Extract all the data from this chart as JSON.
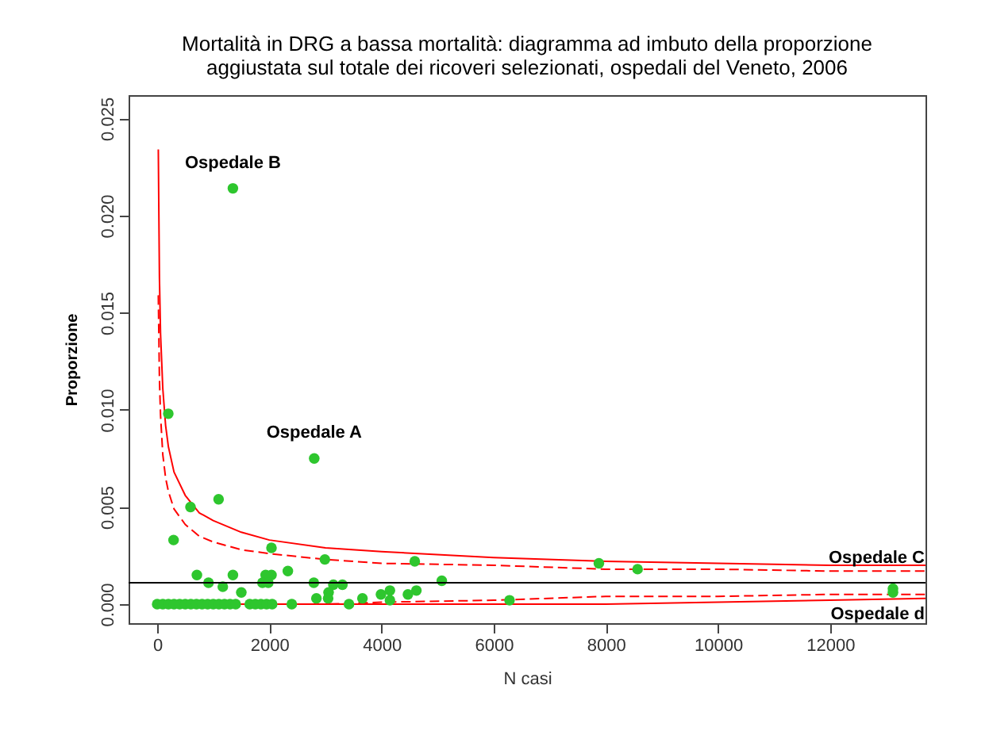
{
  "chart_data": {
    "type": "scatter",
    "title": [
      "Mortalità in DRG a bassa mortalità: diagramma ad imbuto della proporzione",
      "aggiustata sul totale dei ricoveri selezionati, ospedali del Veneto, 2006"
    ],
    "xlabel": "N casi",
    "ylabel": "Proporzione",
    "xlim": [
      -510,
      13700
    ],
    "ylim": [
      -0.00098,
      0.0262
    ],
    "xticks": [
      0,
      2000,
      4000,
      6000,
      8000,
      10000,
      12000
    ],
    "yticks": [
      {
        "value": 0,
        "label": "0.000"
      },
      {
        "value": 0.005,
        "label": "0.005"
      },
      {
        "value": 0.01,
        "label": "0.010"
      },
      {
        "value": 0.015,
        "label": "0.015"
      },
      {
        "value": 0.02,
        "label": "0.020"
      },
      {
        "value": 0.025,
        "label": "0.025"
      }
    ],
    "grid": false,
    "series": [
      {
        "type": "line",
        "color": "#ff0000",
        "line_style": "solid",
        "x": [
          20,
          40,
          60,
          100,
          150,
          200,
          300,
          500,
          750,
          1000,
          1500,
          2000,
          3000,
          4000,
          6000,
          8000,
          10000,
          12000,
          13700
        ],
        "values": [
          0.0234,
          0.0168,
          0.0139,
          0.0111,
          0.0092,
          0.0081,
          0.0068,
          0.0056,
          0.0047,
          0.0043,
          0.0037,
          0.0033,
          0.0029,
          0.0027,
          0.0024,
          0.0022,
          0.0021,
          0.002,
          0.002
        ]
      },
      {
        "type": "line",
        "color": "#ff0000",
        "line_style": "dashed",
        "x": [
          20,
          40,
          60,
          100,
          150,
          200,
          300,
          500,
          750,
          1000,
          1500,
          2000,
          3000,
          4000,
          6000,
          8000,
          10000,
          12000,
          13700
        ],
        "values": [
          0.0159,
          0.0116,
          0.0097,
          0.0077,
          0.0065,
          0.0058,
          0.0049,
          0.0041,
          0.0035,
          0.0032,
          0.0028,
          0.0026,
          0.0023,
          0.0021,
          0.002,
          0.0018,
          0.0018,
          0.0017,
          0.0017
        ]
      },
      {
        "type": "line",
        "color": "#ff0000",
        "line_style": "solid",
        "x": [
          20,
          1000,
          4000,
          8000,
          10000,
          12000,
          13700
        ],
        "values": [
          0,
          0,
          0,
          0,
          0.0001,
          0.0002,
          0.0003
        ]
      },
      {
        "type": "line",
        "color": "#ff0000",
        "line_style": "dashed",
        "x": [
          20,
          1000,
          3000,
          4000,
          6000,
          8000,
          10000,
          12000,
          13700
        ],
        "values": [
          0,
          0,
          0,
          0.0001,
          0.0002,
          0.0004,
          0.0004,
          0.0005,
          0.0005
        ]
      },
      {
        "marker": "circle",
        "color": "#2ec62e",
        "x": [
          198,
          2800,
          1095,
          594,
          292,
          2038,
          2990,
          4593,
          708,
          1350,
          1934,
          2038,
          2330,
          5075,
          915,
          1170,
          1500,
          1877,
          1981,
          2793,
          3141,
          3303,
          3056,
          2839,
          3048,
          3660,
          3990,
          4150,
          4150,
          4471,
          4622,
          6283,
          1350,
          7876,
          8566,
          13120,
          13120,
          0,
          100,
          200,
          300,
          400,
          500,
          600,
          700,
          800,
          900,
          1000,
          1100,
          1200,
          1300,
          1400,
          1650,
          1750,
          1850,
          1950,
          2050,
          2400,
          3420
        ],
        "values": [
          0.0098,
          0.0075,
          0.0054,
          0.005,
          0.0033,
          0.0029,
          0.0023,
          0.0022,
          0.0015,
          0.0015,
          0.0015,
          0.0015,
          0.0017,
          0.0012,
          0.0011,
          0.0009,
          0.0006,
          0.0011,
          0.0011,
          0.0011,
          0.001,
          0.001,
          0.0006,
          0.0003,
          0.0003,
          0.0003,
          0.0005,
          0.0007,
          0.0002,
          0.0005,
          0.0007,
          0.0002,
          0.0214,
          0.0021,
          0.0018,
          0.0008,
          0.0006,
          0,
          0,
          0,
          0,
          0,
          0,
          0,
          0,
          0,
          0,
          0,
          0,
          0,
          0,
          0,
          0,
          0,
          0,
          0,
          0,
          0,
          0
        ]
      }
    ],
    "ref_lines": [
      {
        "axis": "y",
        "value": 0.0011,
        "color": "#000000"
      }
    ],
    "annotations": [
      {
        "text": "Ospedale B",
        "x": 1350,
        "y": 0.0214
      },
      {
        "text": "Ospedale A",
        "x": 2800,
        "y": 0.0075
      },
      {
        "text": "Ospedale C",
        "x": 13120,
        "y": 0.0008
      },
      {
        "text": "Ospedale d",
        "x": 13120,
        "y": 0.0006
      }
    ]
  }
}
